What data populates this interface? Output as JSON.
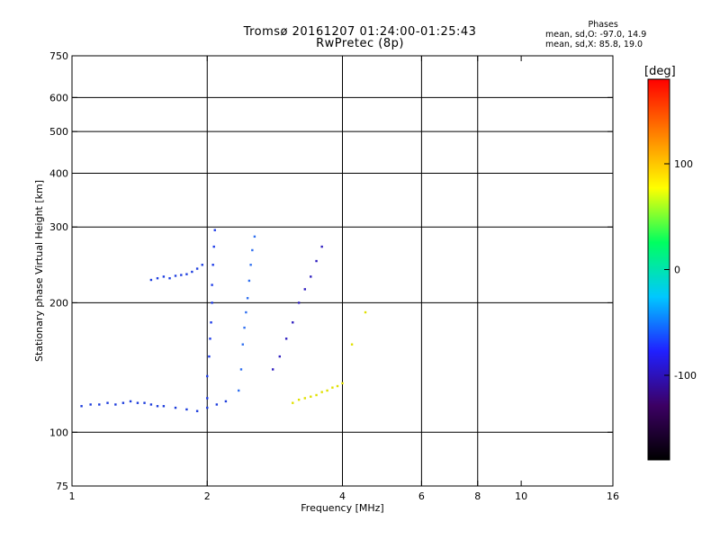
{
  "header": {
    "title": "Tromsø 20161207 01:24:00-01:25:43",
    "subtitle": "RwPretec (8p)"
  },
  "stats": {
    "title": "Phases",
    "line_o": "mean, sd,O: -97.0, 14.9",
    "line_x": "mean, sd,X:  85.8, 19.0"
  },
  "colorbar": {
    "label": "[deg]",
    "ticks": [
      "100",
      "0",
      "-100"
    ],
    "tick_values": [
      100,
      0,
      -100
    ],
    "range": [
      -180,
      180
    ],
    "colors": [
      "#000000",
      "#3c0064",
      "#2020ff",
      "#00c8ff",
      "#00ff60",
      "#ffff00",
      "#ff8000",
      "#ff0000"
    ]
  },
  "chart_data": {
    "type": "scatter",
    "title": "Tromsø 20161207 01:24:00-01:25:43",
    "subtitle": "RwPretec (8p)",
    "xlabel": "Frequency [MHz]",
    "ylabel": "Stationary phase Virtual Height [km]",
    "xscale": "log",
    "yscale": "log",
    "xlim": [
      1,
      16
    ],
    "ylim": [
      75,
      750
    ],
    "xticks": [
      "1",
      "2",
      "4",
      "6",
      "8",
      "10",
      "16"
    ],
    "xtick_values": [
      1,
      2,
      4,
      6,
      8,
      10,
      16
    ],
    "yticks": [
      "75",
      "100",
      "200",
      "300",
      "400",
      "500",
      "600",
      "750"
    ],
    "ytick_values": [
      75,
      100,
      200,
      300,
      400,
      500,
      600,
      750
    ],
    "grid_x": [
      2,
      4,
      6,
      8
    ],
    "grid_y": [
      100,
      200,
      300,
      400,
      500,
      600
    ],
    "colorbar_label": "[deg]",
    "series": [
      {
        "trace": "low-band",
        "color": "#1c3cdc",
        "x": [
          1.05,
          1.1,
          1.15,
          1.2,
          1.25,
          1.3,
          1.35,
          1.4,
          1.45,
          1.5,
          1.55,
          1.6,
          1.7,
          1.8,
          1.9,
          2.0,
          2.1,
          2.2
        ],
        "y": [
          115,
          116,
          116,
          117,
          116,
          117,
          118,
          117,
          117,
          116,
          115,
          115,
          114,
          113,
          112,
          114,
          116,
          118
        ]
      },
      {
        "trace": "upper-low",
        "color": "#2040e0",
        "x": [
          1.5,
          1.55,
          1.6,
          1.65,
          1.7,
          1.75,
          1.8,
          1.85,
          1.9,
          1.95
        ],
        "y": [
          226,
          228,
          230,
          228,
          231,
          232,
          233,
          236,
          240,
          245
        ]
      },
      {
        "trace": "column-2.0",
        "color": "#1e3ce8",
        "x": [
          2.0,
          2.0,
          2.02,
          2.03,
          2.04,
          2.05,
          2.05,
          2.06,
          2.07,
          2.08
        ],
        "y": [
          120,
          135,
          150,
          165,
          180,
          200,
          220,
          245,
          270,
          295
        ]
      },
      {
        "trace": "column-2.4",
        "color": "#3070f0",
        "x": [
          2.35,
          2.38,
          2.4,
          2.42,
          2.44,
          2.46,
          2.48,
          2.5,
          2.52,
          2.55
        ],
        "y": [
          125,
          140,
          160,
          175,
          190,
          205,
          225,
          245,
          265,
          285
        ]
      },
      {
        "trace": "mid-band",
        "color": "#3020c0",
        "x": [
          2.8,
          2.9,
          3.0,
          3.1,
          3.2,
          3.3,
          3.4,
          3.5,
          3.6
        ],
        "y": [
          140,
          150,
          165,
          180,
          200,
          215,
          230,
          250,
          270
        ]
      },
      {
        "trace": "x-mode",
        "color": "#e0e000",
        "x": [
          3.1,
          3.2,
          3.3,
          3.4,
          3.5,
          3.6,
          3.7,
          3.8,
          3.9,
          4.0,
          4.2,
          4.5
        ],
        "y": [
          117,
          119,
          120,
          121,
          122,
          124,
          125,
          127,
          128,
          130,
          160,
          190
        ]
      }
    ]
  }
}
